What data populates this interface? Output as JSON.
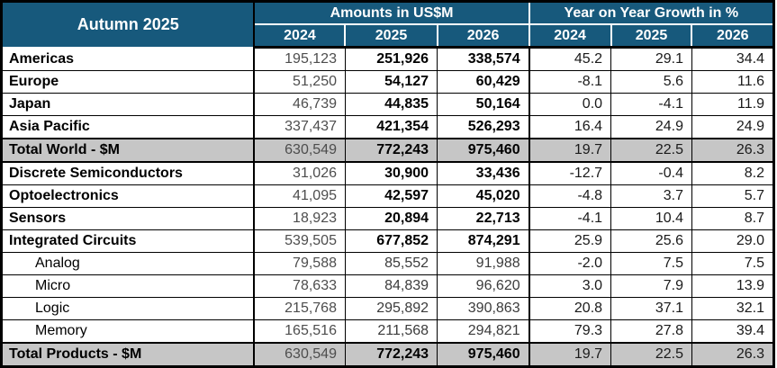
{
  "title": "Autumn 2025",
  "column_groups": {
    "amounts": {
      "label": "Amounts in US$M",
      "years": [
        "2024",
        "2025",
        "2026"
      ]
    },
    "growth": {
      "label": "Year on Year Growth in %",
      "years": [
        "2024",
        "2025",
        "2026"
      ]
    }
  },
  "colors": {
    "header_bg": "#17597C",
    "header_text": "#FFFFFF",
    "total_row_bg": "#C6C6C6",
    "border": "#000000"
  },
  "rows": [
    {
      "label": "Americas",
      "style": "main",
      "amounts": {
        "y2024": "195,123",
        "y2025": "251,926",
        "y2026": "338,574"
      },
      "growth": {
        "y2024": "45.2",
        "y2025": "29.1",
        "y2026": "34.4"
      }
    },
    {
      "label": "Europe",
      "style": "main",
      "amounts": {
        "y2024": "51,250",
        "y2025": "54,127",
        "y2026": "60,429"
      },
      "growth": {
        "y2024": "-8.1",
        "y2025": "5.6",
        "y2026": "11.6"
      }
    },
    {
      "label": "Japan",
      "style": "main",
      "amounts": {
        "y2024": "46,739",
        "y2025": "44,835",
        "y2026": "50,164"
      },
      "growth": {
        "y2024": "0.0",
        "y2025": "-4.1",
        "y2026": "11.9"
      }
    },
    {
      "label": "Asia Pacific",
      "style": "main",
      "amounts": {
        "y2024": "337,437",
        "y2025": "421,354",
        "y2026": "526,293"
      },
      "growth": {
        "y2024": "16.4",
        "y2025": "24.9",
        "y2026": "24.9"
      }
    },
    {
      "label": "Total World - $M",
      "style": "total",
      "amounts": {
        "y2024": "630,549",
        "y2025": "772,243",
        "y2026": "975,460"
      },
      "growth": {
        "y2024": "19.7",
        "y2025": "22.5",
        "y2026": "26.3"
      }
    },
    {
      "label": "Discrete Semiconductors",
      "style": "main",
      "amounts": {
        "y2024": "31,026",
        "y2025": "30,900",
        "y2026": "33,436"
      },
      "growth": {
        "y2024": "-12.7",
        "y2025": "-0.4",
        "y2026": "8.2"
      }
    },
    {
      "label": "Optoelectronics",
      "style": "main",
      "amounts": {
        "y2024": "41,095",
        "y2025": "42,597",
        "y2026": "45,020"
      },
      "growth": {
        "y2024": "-4.8",
        "y2025": "3.7",
        "y2026": "5.7"
      }
    },
    {
      "label": "Sensors",
      "style": "main",
      "amounts": {
        "y2024": "18,923",
        "y2025": "20,894",
        "y2026": "22,713"
      },
      "growth": {
        "y2024": "-4.1",
        "y2025": "10.4",
        "y2026": "8.7"
      }
    },
    {
      "label": "Integrated Circuits",
      "style": "main",
      "amounts": {
        "y2024": "539,505",
        "y2025": "677,852",
        "y2026": "874,291"
      },
      "growth": {
        "y2024": "25.9",
        "y2025": "25.6",
        "y2026": "29.0"
      }
    },
    {
      "label": "Analog",
      "style": "sub",
      "amounts": {
        "y2024": "79,588",
        "y2025": "85,552",
        "y2026": "91,988"
      },
      "growth": {
        "y2024": "-2.0",
        "y2025": "7.5",
        "y2026": "7.5"
      }
    },
    {
      "label": "Micro",
      "style": "sub",
      "amounts": {
        "y2024": "78,633",
        "y2025": "84,839",
        "y2026": "96,620"
      },
      "growth": {
        "y2024": "3.0",
        "y2025": "7.9",
        "y2026": "13.9"
      }
    },
    {
      "label": "Logic",
      "style": "sub",
      "amounts": {
        "y2024": "215,768",
        "y2025": "295,892",
        "y2026": "390,863"
      },
      "growth": {
        "y2024": "20.8",
        "y2025": "37.1",
        "y2026": "32.1"
      }
    },
    {
      "label": "Memory",
      "style": "sub",
      "amounts": {
        "y2024": "165,516",
        "y2025": "211,568",
        "y2026": "294,821"
      },
      "growth": {
        "y2024": "79.3",
        "y2025": "27.8",
        "y2026": "39.4"
      }
    },
    {
      "label": "Total Products - $M",
      "style": "total",
      "amounts": {
        "y2024": "630,549",
        "y2025": "772,243",
        "y2026": "975,460"
      },
      "growth": {
        "y2024": "19.7",
        "y2025": "22.5",
        "y2026": "26.3"
      }
    }
  ]
}
